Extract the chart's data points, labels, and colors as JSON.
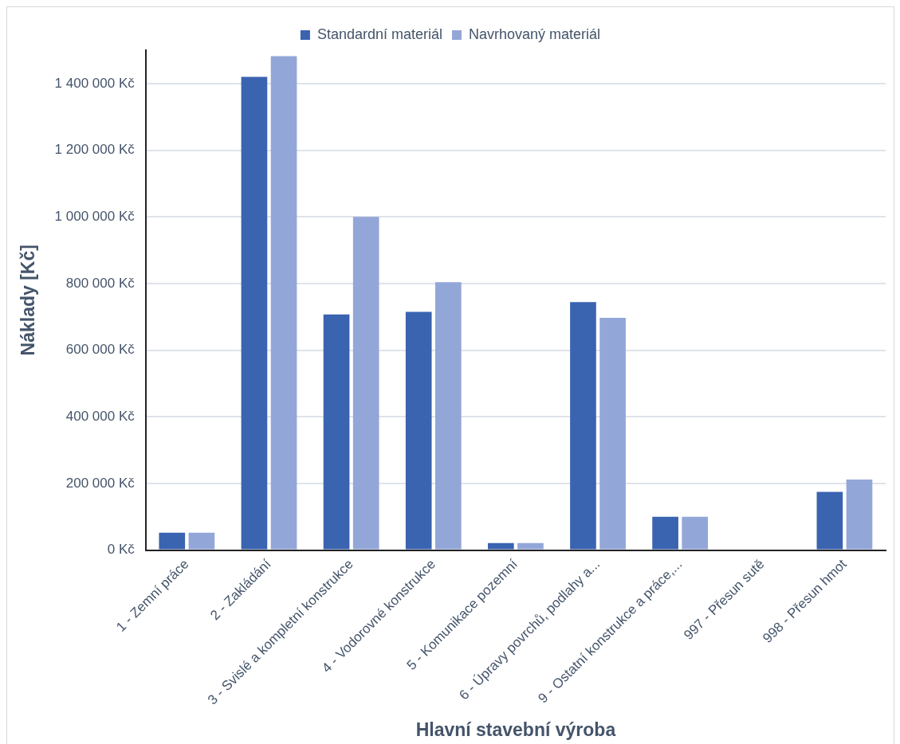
{
  "chart_data": {
    "type": "bar",
    "xlabel": "Hlavní stavební výroba",
    "ylabel": "Náklady [Kč]",
    "categories": [
      "1 - Zemní práce",
      "2 - Zakládání",
      "3 - Svislé a kompletní konstrukce",
      "4 - Vodorovné konstrukce",
      "5 - Komunikace pozemní",
      "6 - Úpravy povrchů, podlahy a...",
      "9 - Ostatní konstrukce a práce,...",
      "997 - Přesun sutě",
      "998 - Přesun hmot"
    ],
    "series": [
      {
        "name": "Standardní materiál",
        "color": "#3a63b0",
        "values": [
          52000,
          1420000,
          707000,
          715000,
          21000,
          744000,
          100000,
          0,
          175000
        ]
      },
      {
        "name": "Navrhovaný materiál",
        "color": "#93a6d8",
        "values": [
          52000,
          1482000,
          1000000,
          804000,
          21000,
          697000,
          100000,
          0,
          212000
        ]
      }
    ],
    "ylim": [
      0,
      1500000
    ],
    "yticks": [
      {
        "value": 0,
        "label": "0 Kč"
      },
      {
        "value": 200000,
        "label": "200 000 Kč"
      },
      {
        "value": 400000,
        "label": "400 000 Kč"
      },
      {
        "value": 600000,
        "label": "600 000 Kč"
      },
      {
        "value": 800000,
        "label": "800 000 Kč"
      },
      {
        "value": 1000000,
        "label": "1 000 000 Kč"
      },
      {
        "value": 1200000,
        "label": "1 200 000 Kč"
      },
      {
        "value": 1400000,
        "label": "1 400 000 Kč"
      }
    ],
    "grid": "y",
    "legend": "top"
  }
}
